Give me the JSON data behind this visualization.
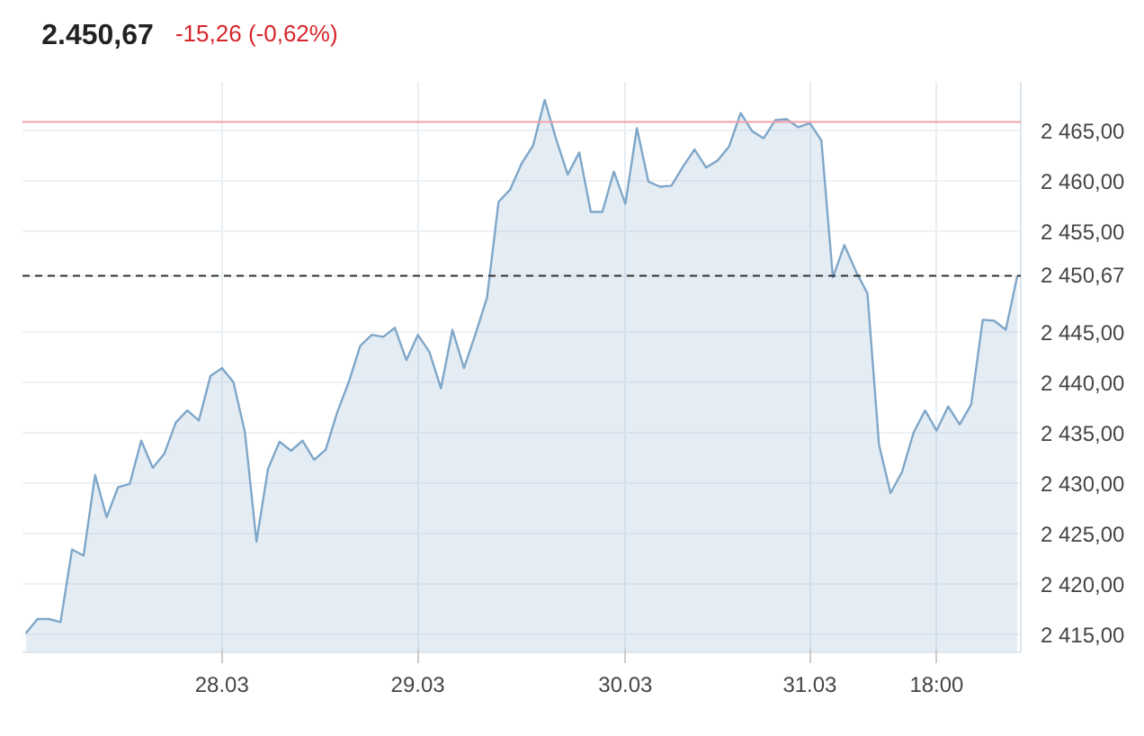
{
  "chart_data": {
    "type": "area",
    "annotations": [
      "2.450,67",
      "-15,26 (-0,62%)"
    ],
    "categories": [
      null,
      null,
      null,
      null,
      null,
      null,
      null,
      null,
      null,
      null,
      null,
      null,
      null,
      null,
      null,
      null,
      null,
      "28.03",
      null,
      null,
      null,
      null,
      null,
      null,
      null,
      null,
      null,
      null,
      null,
      null,
      null,
      null,
      null,
      null,
      "29.03",
      null,
      null,
      null,
      null,
      null,
      null,
      null,
      null,
      null,
      null,
      null,
      null,
      null,
      null,
      null,
      null,
      null,
      "30.03",
      null,
      null,
      null,
      null,
      null,
      null,
      null,
      null,
      null,
      null,
      null,
      null,
      null,
      null,
      null,
      "31.03",
      null,
      null,
      null,
      null,
      null,
      null,
      null,
      null,
      null,
      null,
      "18:00",
      null,
      null,
      null,
      null,
      null,
      null,
      null
    ],
    "series": [
      {
        "color": "#7fa7c9",
        "values": [
          2415.2,
          2416.6,
          2416.6,
          2416.3,
          2423.5,
          2422.9,
          2430.9,
          2426.7,
          2429.7,
          2430.0,
          2434.3,
          2431.6,
          2433.0,
          2436.1,
          2437.3,
          2436.3,
          2440.7,
          2441.5,
          2440.1,
          2435.1,
          2424.3,
          2431.5,
          2434.2,
          2433.3,
          2434.3,
          2432.4,
          2433.4,
          2437.1,
          2440.1,
          2443.7,
          2444.8,
          2444.6,
          2445.5,
          2442.3,
          2444.8,
          2443.1,
          2439.5,
          2445.3,
          2441.5,
          2444.9,
          2448.5,
          2458.0,
          2459.2,
          2461.8,
          2463.6,
          2468.1,
          2464.2,
          2460.7,
          2462.9,
          2457.0,
          2457.0,
          2461.0,
          2457.8,
          2465.3,
          2460.0,
          2459.5,
          2459.6,
          2461.5,
          2463.2,
          2461.4,
          2462.1,
          2463.5,
          2466.8,
          2465.0,
          2464.3,
          2466.1,
          2466.2,
          2465.4,
          2465.8,
          2464.1,
          2450.5,
          2453.7,
          2451.1,
          2448.9,
          2433.9,
          2429.1,
          2431.2,
          2435.1,
          2437.3,
          2435.3,
          2437.7,
          2435.9,
          2437.9,
          2446.3,
          2446.2,
          2445.3,
          2450.67
        ]
      }
    ],
    "ylim": [
      2413.3,
      2469.9
    ],
    "yticks": [
      {
        "value": 2415,
        "label": "2 415,00"
      },
      {
        "value": 2420,
        "label": "2 420,00"
      },
      {
        "value": 2425,
        "label": "2 425,00"
      },
      {
        "value": 2430,
        "label": "2 430,00"
      },
      {
        "value": 2435,
        "label": "2 435,00"
      },
      {
        "value": 2440,
        "label": "2 440,00"
      },
      {
        "value": 2445,
        "label": "2 445,00"
      },
      {
        "value": 2455,
        "label": "2 455,00"
      },
      {
        "value": 2460,
        "label": "2 460,00"
      },
      {
        "value": 2465,
        "label": "2 465,00"
      }
    ],
    "ref_lines": [
      {
        "axis": "y",
        "value": 2465.93,
        "color": "#f2a0a8",
        "line_style": "solid"
      },
      {
        "axis": "y",
        "value": 2450.67,
        "label": "2 450,67",
        "color": "#333333",
        "line_style": "dashed"
      }
    ],
    "grid": true
  }
}
